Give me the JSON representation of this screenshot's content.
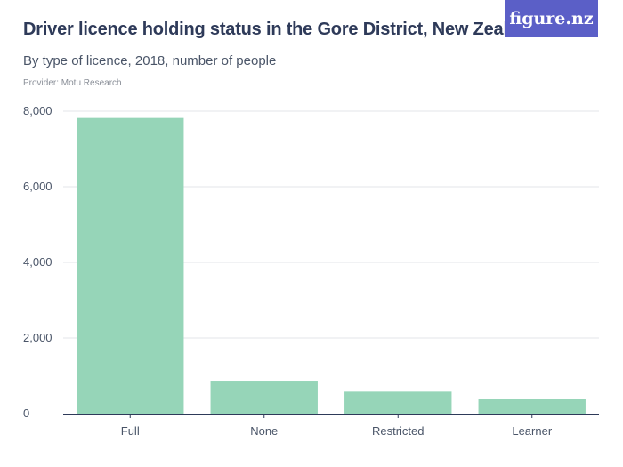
{
  "header": {
    "title": "Driver licence holding status in the Gore District, New Zealand",
    "subtitle": "By type of licence, 2018, number of people",
    "provider": "Provider: Motu Research",
    "logo_text": "figure.nz"
  },
  "colors": {
    "bar": "#96d5b8",
    "grid": "#e3e6ea",
    "axis": "#2e3a59",
    "logo_bg": "#5b5fc7"
  },
  "chart_data": {
    "type": "bar",
    "categories": [
      "Full",
      "None",
      "Restricted",
      "Learner"
    ],
    "values": [
      7820,
      870,
      580,
      390
    ],
    "ylim": [
      0,
      8000
    ],
    "yticks": [
      0,
      2000,
      4000,
      6000,
      8000
    ],
    "ytick_labels": [
      "0",
      "2,000",
      "4,000",
      "6,000",
      "8,000"
    ],
    "grid": true
  }
}
